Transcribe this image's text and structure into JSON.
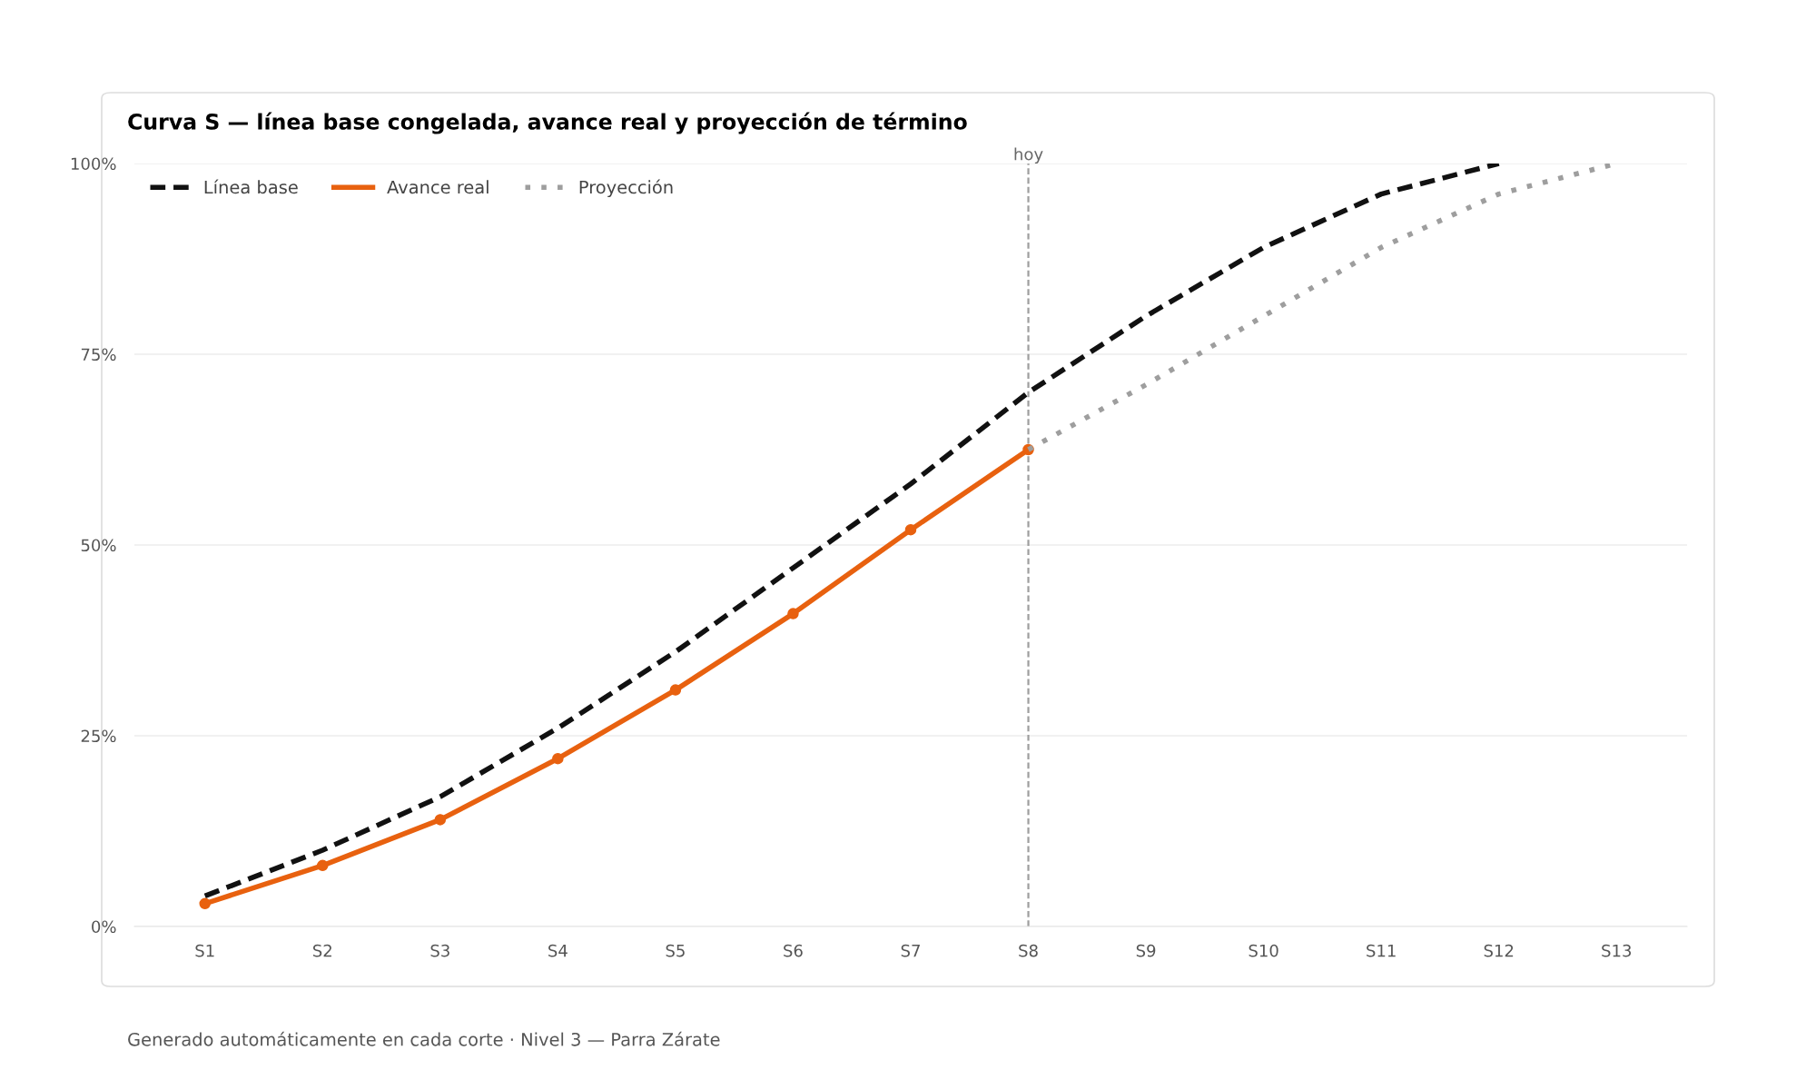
{
  "chart_data": {
    "type": "line",
    "title": "Curva S — línea base congelada, avance real y proyección de término",
    "categories": [
      "S1",
      "S2",
      "S3",
      "S4",
      "S5",
      "S6",
      "S7",
      "S8",
      "S9",
      "S10",
      "S11",
      "S12",
      "S13"
    ],
    "series": [
      {
        "name": "Línea base",
        "color": "#111111",
        "line_style": "dashed",
        "marker": "none",
        "values": [
          4,
          10,
          17,
          26,
          36,
          47,
          58,
          70,
          80,
          89,
          96,
          100,
          null
        ]
      },
      {
        "name": "Avance real",
        "color": "#e8610f",
        "line_style": "solid",
        "marker": "circle",
        "values": [
          3,
          8,
          14,
          22,
          31,
          41,
          52,
          62.5,
          null,
          null,
          null,
          null,
          null
        ]
      },
      {
        "name": "Proyección",
        "color": "#9e9e9e",
        "line_style": "dotted",
        "marker": "none",
        "values": [
          null,
          null,
          null,
          null,
          null,
          null,
          null,
          62.5,
          71,
          80,
          89,
          96,
          100
        ]
      }
    ],
    "ylim": [
      0,
      100
    ],
    "yticks": [
      {
        "value": 0,
        "label": "0%"
      },
      {
        "value": 25,
        "label": "25%"
      },
      {
        "value": 50,
        "label": "50%"
      },
      {
        "value": 75,
        "label": "75%"
      },
      {
        "value": 100,
        "label": "100%"
      }
    ],
    "grid": "y",
    "legend": "top left",
    "ref_lines": [
      {
        "axis": "x",
        "value": "S8",
        "label": "hoy",
        "color": "#9e9e9e",
        "line_style": "dashed"
      }
    ],
    "annotations": [
      "Generado automáticamente en cada corte · Nivel 3 — Parra Zárate"
    ]
  }
}
